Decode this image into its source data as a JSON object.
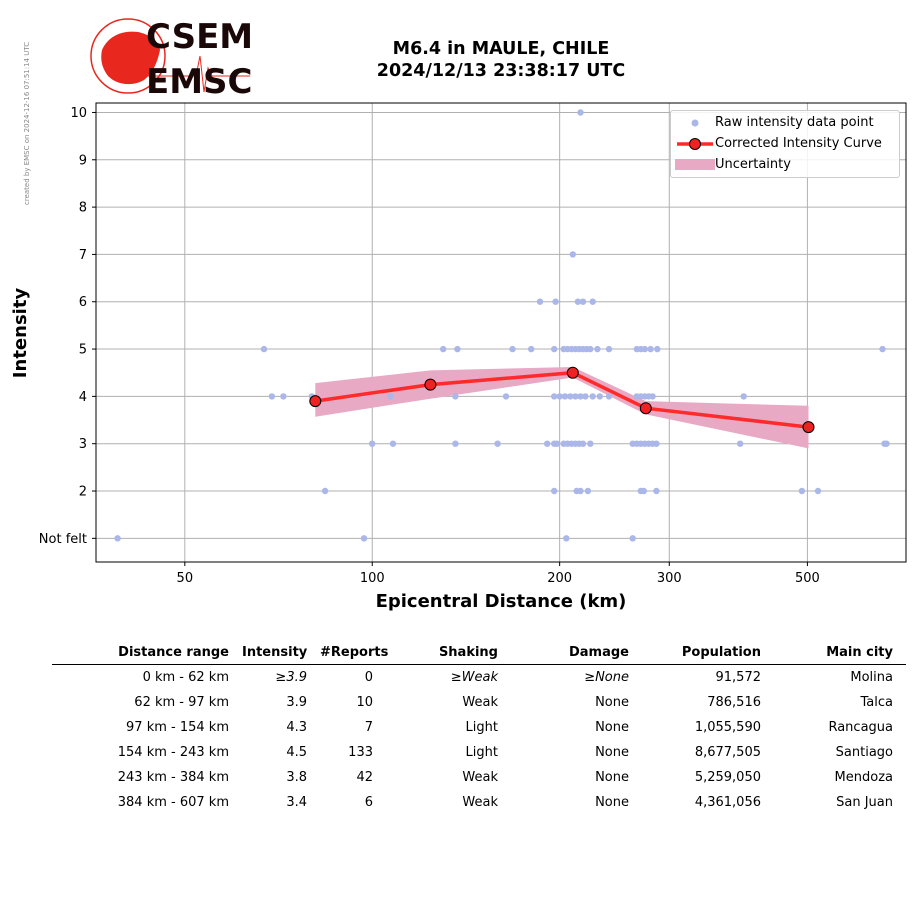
{
  "stamp": "created by EMSC on 2024-12-16 07:51:14 UTC",
  "logo": {
    "line1": "CSEM",
    "line2": "EMSC"
  },
  "title": {
    "line1": "M6.4 in MAULE, CHILE",
    "line2": "2024/12/13 23:38:17 UTC"
  },
  "colors": {
    "raw": "#aab7e8",
    "curve": "#ff2a2a",
    "marker": "#ee2222",
    "band": "#e8a9c4",
    "grid": "#b0b0b0"
  },
  "chart_data": {
    "type": "scatter",
    "xlabel": "Epicentral Distance (km)",
    "ylabel": "Intensity",
    "xscale": "log",
    "xlim": [
      36,
      720
    ],
    "ylim": [
      0.5,
      10.2
    ],
    "xticks": [
      50,
      100,
      200,
      300,
      500
    ],
    "xtick_labels": [
      "50",
      "100",
      "200",
      "300",
      "500"
    ],
    "yticks": [
      1,
      2,
      3,
      4,
      5,
      6,
      7,
      8,
      9,
      10
    ],
    "ytick_labels": [
      "Not felt",
      "2",
      "3",
      "4",
      "5",
      "6",
      "7",
      "8",
      "9",
      "10"
    ],
    "grid": true,
    "legend_position": "top-right",
    "legend": [
      "Raw intensity data point",
      "Corrected Intensity Curve",
      "Uncertainty"
    ],
    "raw_points": [
      [
        39,
        1
      ],
      [
        97,
        1
      ],
      [
        205,
        1
      ],
      [
        262,
        1
      ],
      [
        84,
        2
      ],
      [
        196,
        2
      ],
      [
        213,
        2
      ],
      [
        216,
        2
      ],
      [
        222,
        2
      ],
      [
        270,
        2
      ],
      [
        273,
        2
      ],
      [
        286,
        2
      ],
      [
        490,
        2
      ],
      [
        520,
        2
      ],
      [
        100,
        3
      ],
      [
        108,
        3
      ],
      [
        136,
        3
      ],
      [
        159,
        3
      ],
      [
        191,
        3
      ],
      [
        196,
        3
      ],
      [
        198,
        3
      ],
      [
        203,
        3
      ],
      [
        206,
        3
      ],
      [
        209,
        3
      ],
      [
        212,
        3
      ],
      [
        215,
        3
      ],
      [
        218,
        3
      ],
      [
        224,
        3
      ],
      [
        262,
        3
      ],
      [
        266,
        3
      ],
      [
        270,
        3
      ],
      [
        274,
        3
      ],
      [
        278,
        3
      ],
      [
        282,
        3
      ],
      [
        286,
        3
      ],
      [
        390,
        3
      ],
      [
        665,
        3
      ],
      [
        670,
        3
      ],
      [
        69,
        4
      ],
      [
        72,
        4
      ],
      [
        80,
        4
      ],
      [
        107,
        4
      ],
      [
        136,
        4
      ],
      [
        164,
        4
      ],
      [
        196,
        4
      ],
      [
        200,
        4
      ],
      [
        204,
        4
      ],
      [
        208,
        4
      ],
      [
        212,
        4
      ],
      [
        216,
        4
      ],
      [
        220,
        4
      ],
      [
        226,
        4
      ],
      [
        232,
        4
      ],
      [
        240,
        4
      ],
      [
        266,
        4
      ],
      [
        270,
        4
      ],
      [
        274,
        4
      ],
      [
        278,
        4
      ],
      [
        282,
        4
      ],
      [
        395,
        4
      ],
      [
        67,
        5
      ],
      [
        130,
        5
      ],
      [
        137,
        5
      ],
      [
        168,
        5
      ],
      [
        180,
        5
      ],
      [
        196,
        5
      ],
      [
        203,
        5
      ],
      [
        206,
        5
      ],
      [
        209,
        5
      ],
      [
        212,
        5
      ],
      [
        215,
        5
      ],
      [
        218,
        5
      ],
      [
        221,
        5
      ],
      [
        224,
        5
      ],
      [
        230,
        5
      ],
      [
        240,
        5
      ],
      [
        266,
        5
      ],
      [
        270,
        5
      ],
      [
        274,
        5
      ],
      [
        280,
        5
      ],
      [
        287,
        5
      ],
      [
        660,
        5
      ],
      [
        186,
        6
      ],
      [
        197,
        6
      ],
      [
        214,
        6
      ],
      [
        218,
        6
      ],
      [
        226,
        6
      ],
      [
        210,
        7
      ],
      [
        216,
        10
      ]
    ],
    "series": [
      {
        "name": "Corrected Intensity Curve",
        "x": [
          81,
          124,
          210,
          275,
          502
        ],
        "y": [
          3.9,
          4.25,
          4.5,
          3.75,
          3.35
        ]
      },
      {
        "name": "Uncertainty",
        "x": [
          81,
          124,
          210,
          275,
          502
        ],
        "upper": [
          4.28,
          4.55,
          4.62,
          3.9,
          3.8
        ],
        "lower": [
          3.57,
          3.95,
          4.4,
          3.62,
          2.9
        ]
      }
    ]
  },
  "table": {
    "headers": [
      "Distance range",
      "Intensity",
      "#Reports",
      "Shaking",
      "Damage",
      "Population",
      "Main city"
    ],
    "rows": [
      [
        "0 km -   62 km",
        "≥3.9",
        "0",
        "≥Weak",
        "≥None",
        "91,572",
        "Molina"
      ],
      [
        "62 km -   97 km",
        "3.9",
        "10",
        "Weak",
        "None",
        "786,516",
        "Talca"
      ],
      [
        "97 km -  154 km",
        "4.3",
        "7",
        "Light",
        "None",
        "1,055,590",
        "Rancagua"
      ],
      [
        "154 km -  243 km",
        "4.5",
        "133",
        "Light",
        "None",
        "8,677,505",
        "Santiago"
      ],
      [
        "243 km -  384 km",
        "3.8",
        "42",
        "Weak",
        "None",
        "5,259,050",
        "Mendoza"
      ],
      [
        "384 km -  607 km",
        "3.4",
        "6",
        "Weak",
        "None",
        "4,361,056",
        "San Juan"
      ]
    ]
  }
}
